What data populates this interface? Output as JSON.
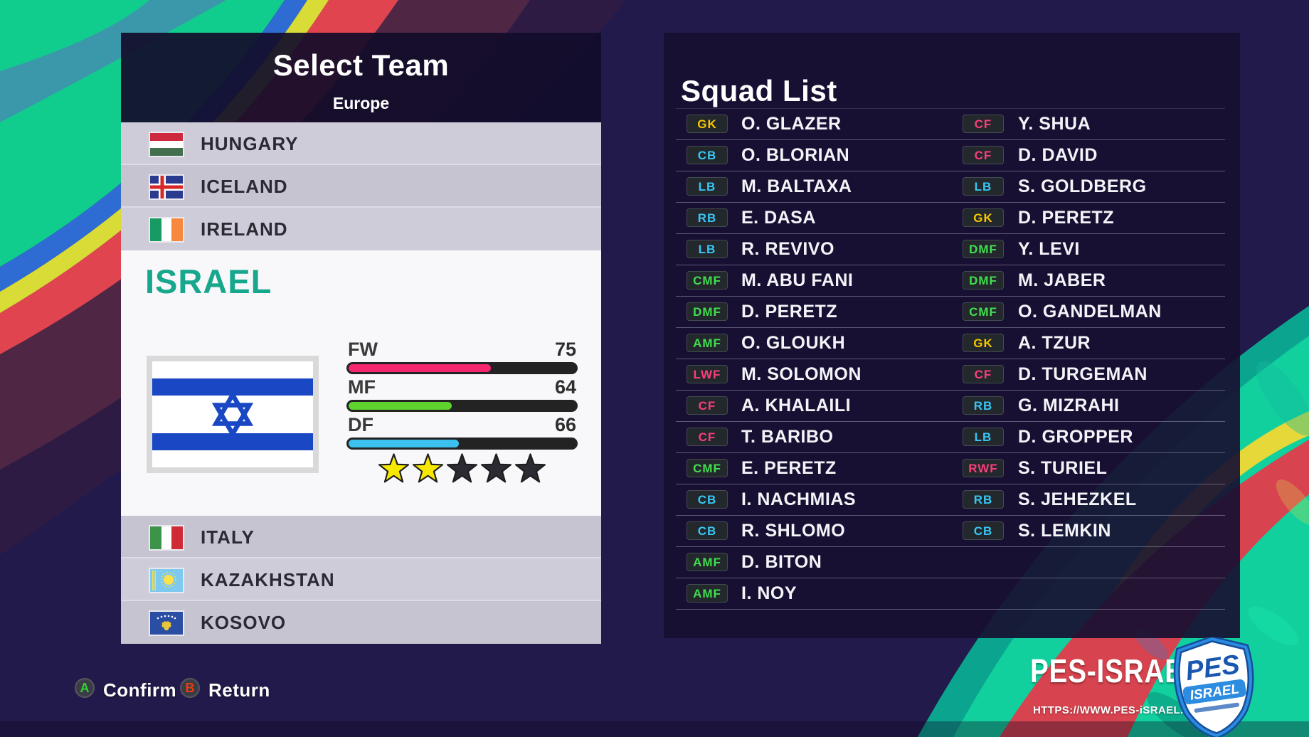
{
  "select_team": {
    "title": "Select Team",
    "region": "Europe",
    "teams_above": [
      {
        "name": "HUNGARY"
      },
      {
        "name": "ICELAND"
      },
      {
        "name": "IRELAND"
      }
    ],
    "teams_below": [
      {
        "name": "ITALY"
      },
      {
        "name": "KAZAKHSTAN"
      },
      {
        "name": "KOSOVO"
      }
    ]
  },
  "team_detail": {
    "name": "ISRAEL",
    "stats": [
      {
        "label": "FW",
        "value": 75,
        "color": "#f4276f"
      },
      {
        "label": "MF",
        "value": 64,
        "color": "#5fd32e"
      },
      {
        "label": "DF",
        "value": 66,
        "color": "#3cc1ee"
      }
    ],
    "stars": {
      "filled": 2,
      "total": 5
    }
  },
  "squad": {
    "title": "Squad List",
    "rows": [
      {
        "left": {
          "pos": "GK",
          "name": "O. GLAZER"
        },
        "right": {
          "pos": "CF",
          "name": "Y. SHUA"
        }
      },
      {
        "left": {
          "pos": "CB",
          "name": "O. BLORIAN"
        },
        "right": {
          "pos": "CF",
          "name": "D. DAVID"
        }
      },
      {
        "left": {
          "pos": "LB",
          "name": "M. BALTAXA"
        },
        "right": {
          "pos": "LB",
          "name": "S. GOLDBERG"
        }
      },
      {
        "left": {
          "pos": "RB",
          "name": "E. DASA"
        },
        "right": {
          "pos": "GK",
          "name": "D. PERETZ"
        }
      },
      {
        "left": {
          "pos": "LB",
          "name": "R. REVIVO"
        },
        "right": {
          "pos": "DMF",
          "name": "Y. LEVI"
        }
      },
      {
        "left": {
          "pos": "CMF",
          "name": "M. ABU FANI"
        },
        "right": {
          "pos": "DMF",
          "name": "M. JABER"
        }
      },
      {
        "left": {
          "pos": "DMF",
          "name": "D. PERETZ"
        },
        "right": {
          "pos": "CMF",
          "name": "O. GANDELMAN"
        }
      },
      {
        "left": {
          "pos": "AMF",
          "name": "O. GLOUKH"
        },
        "right": {
          "pos": "GK",
          "name": "A. TZUR"
        }
      },
      {
        "left": {
          "pos": "LWF",
          "name": "M. SOLOMON"
        },
        "right": {
          "pos": "CF",
          "name": "D. TURGEMAN"
        }
      },
      {
        "left": {
          "pos": "CF",
          "name": "A. KHALAILI"
        },
        "right": {
          "pos": "RB",
          "name": "G. MIZRAHI"
        }
      },
      {
        "left": {
          "pos": "CF",
          "name": "T. BARIBO"
        },
        "right": {
          "pos": "LB",
          "name": "D. GROPPER"
        }
      },
      {
        "left": {
          "pos": "CMF",
          "name": "E. PERETZ"
        },
        "right": {
          "pos": "RWF",
          "name": "S. TURIEL"
        }
      },
      {
        "left": {
          "pos": "CB",
          "name": "I. NACHMIAS"
        },
        "right": {
          "pos": "RB",
          "name": "S. JEHEZKEL"
        }
      },
      {
        "left": {
          "pos": "CB",
          "name": "R. SHLOMO"
        },
        "right": {
          "pos": "CB",
          "name": "S. LEMKIN"
        }
      },
      {
        "left": {
          "pos": "AMF",
          "name": "D. BITON"
        }
      },
      {
        "left": {
          "pos": "AMF",
          "name": "I. NOY"
        }
      }
    ],
    "position_colors": {
      "GK": "#f7c600",
      "DF": "#38c6f4",
      "MF": "#40df4e",
      "FW": "#fb3e7c"
    }
  },
  "footer": {
    "confirm_key": "A",
    "confirm_label": "Confirm",
    "return_key": "B",
    "return_label": "Return"
  },
  "branding": {
    "name": "PES-ISRAEL",
    "url": "HTTPS://WWW.PES-iSRAEL.CO.iL/",
    "shield_top": "PES",
    "shield_bottom": "ISRAEL"
  }
}
